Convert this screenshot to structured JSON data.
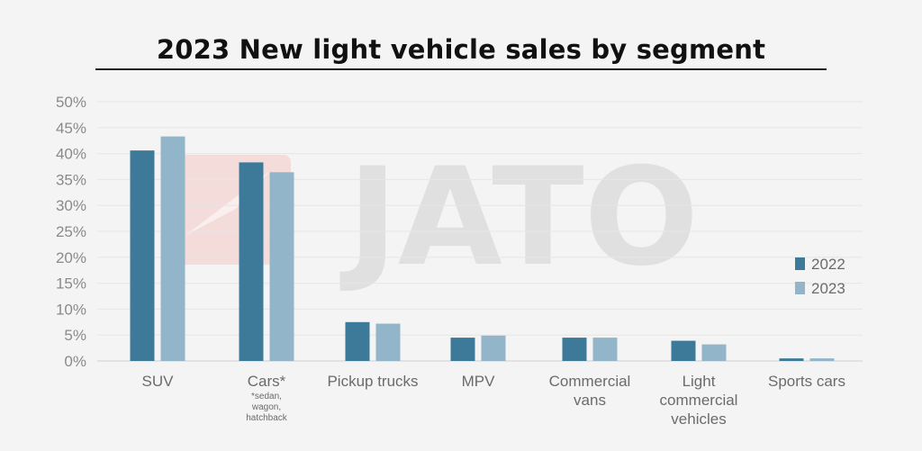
{
  "chart_data": {
    "type": "bar",
    "title": "2023 New light vehicle sales by segment",
    "categories": [
      "SUV",
      "Cars*",
      "Pickup trucks",
      "MPV",
      "Commercial vans",
      "Light commercial vehicles",
      "Sports cars"
    ],
    "category_label_lines": [
      [
        "SUV"
      ],
      [
        "Cars*"
      ],
      [
        "Pickup trucks"
      ],
      [
        "MPV"
      ],
      [
        "Commercial",
        "vans"
      ],
      [
        "Light",
        "commercial",
        "vehicles"
      ],
      [
        "Sports cars"
      ]
    ],
    "notes": {
      "Cars*": [
        "*sedan,",
        "wagon,",
        "hatchback"
      ]
    },
    "series": [
      {
        "name": "2022",
        "color": "#3d7a9a",
        "values": [
          40.6,
          38.3,
          7.5,
          4.5,
          4.5,
          3.9,
          0.5
        ]
      },
      {
        "name": "2023",
        "color": "#93b5ca",
        "values": [
          43.3,
          36.4,
          7.2,
          4.9,
          4.5,
          3.2,
          0.5
        ]
      }
    ],
    "y_ticks": [
      "0%",
      "5%",
      "10%",
      "15%",
      "20%",
      "25%",
      "30%",
      "35%",
      "40%",
      "45%",
      "50%"
    ],
    "ylim": [
      0,
      50
    ],
    "ylabel": "",
    "xlabel": "",
    "grid": true,
    "legend_position": "right",
    "watermark": "JATO"
  }
}
